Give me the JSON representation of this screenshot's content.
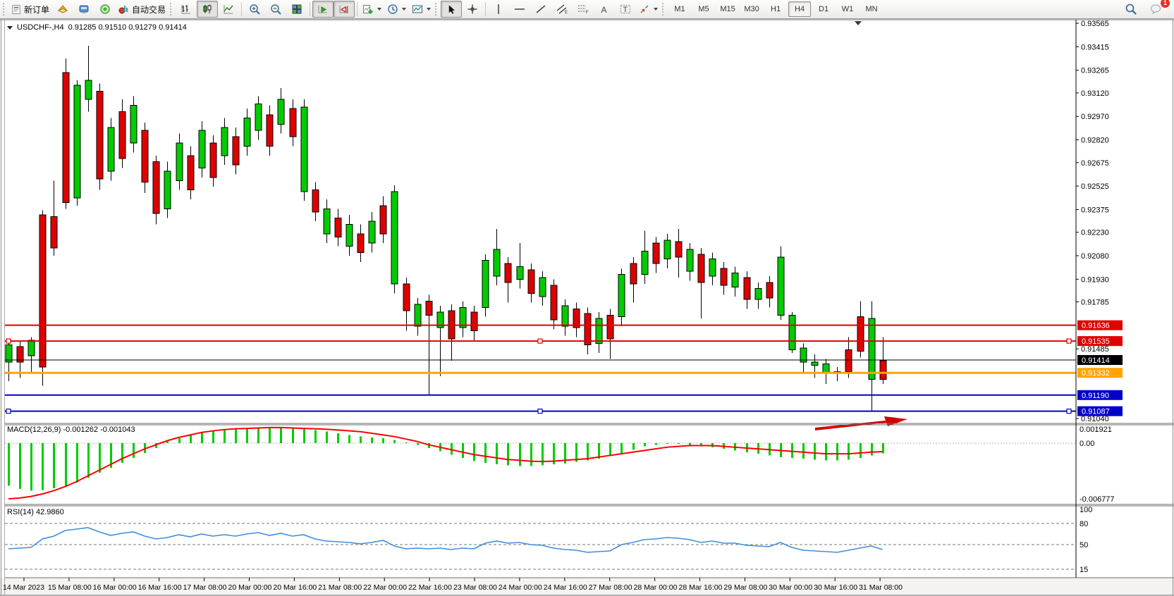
{
  "window": {
    "title_symbol": "USDCHF-,H4",
    "title_ohlc": "0.91285 0.91510 0.91279 0.91414"
  },
  "toolbar": {
    "new_order": "新订单",
    "auto_trading": "自动交易",
    "badge_count": "1",
    "timeframes": [
      "M1",
      "M5",
      "M15",
      "M30",
      "H1",
      "H4",
      "D1",
      "W1",
      "MN"
    ],
    "active_timeframe": "H4"
  },
  "price_axis": {
    "ticks": [
      "0.93565",
      "0.93415",
      "0.93265",
      "0.93120",
      "0.92970",
      "0.92820",
      "0.92675",
      "0.92525",
      "0.92375",
      "0.92230",
      "0.92080",
      "0.91930",
      "0.91785",
      "0.91485",
      "0.91040"
    ]
  },
  "hlines": [
    {
      "price": 0.91636,
      "label": "0.91636",
      "color": "#DF0000",
      "width": 2,
      "selected": false
    },
    {
      "price": 0.91535,
      "label": "0.91535",
      "color": "#DF0000",
      "width": 2,
      "selected": true
    },
    {
      "price": 0.91414,
      "label": "0.91414",
      "color": "#000000",
      "width": 1,
      "selected": false
    },
    {
      "price": 0.91332,
      "label": "0.91332",
      "color": "#FFA500",
      "width": 3,
      "selected": false
    },
    {
      "price": 0.9119,
      "label": "0.91190",
      "color": "#0000C8",
      "width": 2,
      "selected": false
    },
    {
      "price": 0.91087,
      "label": "0.91087",
      "color": "#0000C8",
      "width": 2,
      "selected": true
    }
  ],
  "candles": {
    "green_color": "#00CC00",
    "red_color": "#DF0000",
    "data": [
      [
        "G",
        0.9151,
        0.914,
        0.9154,
        0.9128
      ],
      [
        "R",
        0.915,
        0.914,
        0.9153,
        0.913
      ],
      [
        "G",
        0.9154,
        0.9144,
        0.9156,
        0.9133
      ],
      [
        "R",
        0.9234,
        0.9137,
        0.9237,
        0.9125
      ],
      [
        "R",
        0.9233,
        0.9213,
        0.9256,
        0.9208
      ],
      [
        "R",
        0.9325,
        0.9242,
        0.9334,
        0.9238
      ],
      [
        "G",
        0.9317,
        0.9245,
        0.932,
        0.924
      ],
      [
        "G",
        0.932,
        0.9308,
        0.9342,
        0.93
      ],
      [
        "R",
        0.9313,
        0.9257,
        0.9318,
        0.925
      ],
      [
        "G",
        0.929,
        0.9262,
        0.9296,
        0.9256
      ],
      [
        "R",
        0.93,
        0.927,
        0.9308,
        0.9264
      ],
      [
        "G",
        0.9304,
        0.928,
        0.931,
        0.9274
      ],
      [
        "R",
        0.9288,
        0.9255,
        0.9293,
        0.9248
      ],
      [
        "R",
        0.9268,
        0.9235,
        0.9272,
        0.9228
      ],
      [
        "G",
        0.9262,
        0.9238,
        0.9268,
        0.9232
      ],
      [
        "G",
        0.928,
        0.9256,
        0.9286,
        0.925
      ],
      [
        "R",
        0.9272,
        0.925,
        0.9278,
        0.9244
      ],
      [
        "G",
        0.9288,
        0.9264,
        0.9294,
        0.9258
      ],
      [
        "R",
        0.928,
        0.9258,
        0.9285,
        0.9252
      ],
      [
        "G",
        0.929,
        0.9272,
        0.9296,
        0.9266
      ],
      [
        "R",
        0.9284,
        0.9266,
        0.929,
        0.926
      ],
      [
        "G",
        0.9296,
        0.9278,
        0.9302,
        0.9272
      ],
      [
        "G",
        0.9305,
        0.9288,
        0.931,
        0.9282
      ],
      [
        "R",
        0.9298,
        0.9278,
        0.9304,
        0.9272
      ],
      [
        "G",
        0.9308,
        0.9292,
        0.9315,
        0.9286
      ],
      [
        "R",
        0.9302,
        0.9284,
        0.9308,
        0.9278
      ],
      [
        "G",
        0.9303,
        0.9249,
        0.9308,
        0.9243
      ],
      [
        "R",
        0.925,
        0.9236,
        0.9255,
        0.923
      ],
      [
        "G",
        0.9238,
        0.9222,
        0.9244,
        0.9216
      ],
      [
        "R",
        0.9232,
        0.922,
        0.9238,
        0.9214
      ],
      [
        "G",
        0.9228,
        0.9214,
        0.9234,
        0.9208
      ],
      [
        "R",
        0.9222,
        0.921,
        0.9228,
        0.9204
      ],
      [
        "G",
        0.923,
        0.9216,
        0.9236,
        0.921
      ],
      [
        "R",
        0.924,
        0.9222,
        0.9246,
        0.9216
      ],
      [
        "G",
        0.9249,
        0.919,
        0.9253,
        0.9184
      ],
      [
        "R",
        0.919,
        0.9173,
        0.9194,
        0.916
      ],
      [
        "G",
        0.9177,
        0.9163,
        0.9181,
        0.9157
      ],
      [
        "R",
        0.9179,
        0.917,
        0.9183,
        0.9119
      ],
      [
        "G",
        0.9172,
        0.9162,
        0.9176,
        0.9131
      ],
      [
        "R",
        0.9173,
        0.9155,
        0.9177,
        0.9141
      ],
      [
        "G",
        0.9175,
        0.9162,
        0.9179,
        0.9156
      ],
      [
        "R",
        0.9172,
        0.916,
        0.9176,
        0.9154
      ],
      [
        "G",
        0.9205,
        0.9175,
        0.9209,
        0.9169
      ],
      [
        "G",
        0.9212,
        0.9195,
        0.9225,
        0.9189
      ],
      [
        "R",
        0.9203,
        0.9191,
        0.9207,
        0.9178
      ],
      [
        "G",
        0.9201,
        0.9193,
        0.9216,
        0.9187
      ],
      [
        "R",
        0.9199,
        0.9184,
        0.9203,
        0.9178
      ],
      [
        "G",
        0.9194,
        0.9182,
        0.9198,
        0.9176
      ],
      [
        "R",
        0.9189,
        0.9167,
        0.9193,
        0.9161
      ],
      [
        "G",
        0.9176,
        0.9163,
        0.918,
        0.9157
      ],
      [
        "R",
        0.9174,
        0.9162,
        0.9178,
        0.9156
      ],
      [
        "R",
        0.9171,
        0.9151,
        0.9175,
        0.9145
      ],
      [
        "G",
        0.9168,
        0.9152,
        0.9172,
        0.9146
      ],
      [
        "R",
        0.917,
        0.9155,
        0.9174,
        0.9142
      ],
      [
        "G",
        0.9196,
        0.9169,
        0.92,
        0.9163
      ],
      [
        "R",
        0.9203,
        0.919,
        0.9207,
        0.9178
      ],
      [
        "G",
        0.9211,
        0.9196,
        0.9224,
        0.919
      ],
      [
        "R",
        0.9216,
        0.9203,
        0.922,
        0.9197
      ],
      [
        "G",
        0.9218,
        0.9206,
        0.9222,
        0.92
      ],
      [
        "R",
        0.9217,
        0.9207,
        0.9225,
        0.9194
      ],
      [
        "G",
        0.9212,
        0.9198,
        0.9216,
        0.9192
      ],
      [
        "R",
        0.9209,
        0.9191,
        0.9213,
        0.9168
      ],
      [
        "G",
        0.9206,
        0.9195,
        0.921,
        0.9189
      ],
      [
        "R",
        0.92,
        0.9189,
        0.9204,
        0.9183
      ],
      [
        "G",
        0.9197,
        0.9188,
        0.9201,
        0.9182
      ],
      [
        "R",
        0.9194,
        0.918,
        0.9198,
        0.9174
      ],
      [
        "G",
        0.9187,
        0.918,
        0.9191,
        0.9174
      ],
      [
        "R",
        0.9191,
        0.9181,
        0.9195,
        0.9175
      ],
      [
        "G",
        0.9207,
        0.917,
        0.9214,
        0.9167
      ],
      [
        "G",
        0.917,
        0.9148,
        0.9172,
        0.9146
      ],
      [
        "G",
        0.9149,
        0.914,
        0.9152,
        0.9133
      ],
      [
        "G",
        0.914,
        0.9138,
        0.9145,
        0.913
      ],
      [
        "G",
        0.9139,
        0.9133,
        0.9142,
        0.9126
      ],
      [
        "R",
        0.9134,
        0.9133,
        0.9137,
        0.9128
      ],
      [
        "R",
        0.9148,
        0.9134,
        0.9156,
        0.913
      ],
      [
        "R",
        0.9169,
        0.9147,
        0.9179,
        0.9143
      ],
      [
        "G",
        0.9168,
        0.9129,
        0.9179,
        0.9109
      ],
      [
        "R",
        0.9141,
        0.9129,
        0.9156,
        0.9126
      ]
    ]
  },
  "annotations": {
    "arrow_color": "#D40000"
  },
  "macd": {
    "label": "MACD(12,26,9) -0.001262 -0.001043",
    "axis_labels": [
      "0.001921",
      "0.00",
      "-0.006777"
    ],
    "axis_values": [
      0.001921,
      0,
      -0.006777
    ],
    "hist_color": "#00CC00",
    "signal_color": "#FF0000",
    "histogram": [
      -0.0052,
      -0.0056,
      -0.0058,
      -0.0057,
      -0.0055,
      -0.0052,
      -0.0048,
      -0.0042,
      -0.0036,
      -0.003,
      -0.0024,
      -0.0018,
      -0.0012,
      -0.0006,
      0.0002,
      0.0006,
      0.001,
      0.0013,
      0.0015,
      0.0017,
      0.0018,
      0.00185,
      0.0019,
      0.0019,
      0.00185,
      0.0018,
      0.0017,
      0.0016,
      0.0014,
      0.0012,
      0.001,
      0.0008,
      0.0007,
      0.0006,
      0.0004,
      0.0001,
      -0.0002,
      -0.0006,
      -0.001,
      -0.0014,
      -0.0018,
      -0.0022,
      -0.0024,
      -0.0026,
      -0.0027,
      -0.0028,
      -0.0028,
      -0.0027,
      -0.0026,
      -0.0025,
      -0.0023,
      -0.0021,
      -0.0019,
      -0.0016,
      -0.0012,
      -0.0008,
      -0.0004,
      -0.0002,
      -0.0001,
      -0.0001,
      -0.0002,
      -0.0003,
      -0.0005,
      -0.0007,
      -0.0009,
      -0.0011,
      -0.0013,
      -0.0015,
      -0.0017,
      -0.0018,
      -0.0019,
      -0.002,
      -0.0021,
      -0.0021,
      -0.002,
      -0.0018,
      -0.0015,
      -0.00126
    ],
    "signal": [
      -0.0068,
      -0.0067,
      -0.0065,
      -0.0062,
      -0.0058,
      -0.0053,
      -0.0047,
      -0.004,
      -0.0033,
      -0.0026,
      -0.0019,
      -0.0013,
      -0.0007,
      -0.0002,
      0.0003,
      0.0007,
      0.001,
      0.0013,
      0.0015,
      0.00165,
      0.00175,
      0.0018,
      0.00185,
      0.0019,
      0.0019,
      0.00185,
      0.0018,
      0.00175,
      0.0017,
      0.0016,
      0.0015,
      0.0014,
      0.0012,
      0.001,
      0.0008,
      0.0005,
      0.0002,
      -0.0002,
      -0.0005,
      -0.0008,
      -0.0011,
      -0.0014,
      -0.0016,
      -0.0018,
      -0.002,
      -0.0021,
      -0.0022,
      -0.00225,
      -0.0022,
      -0.0021,
      -0.002,
      -0.0019,
      -0.0017,
      -0.0015,
      -0.0013,
      -0.0011,
      -0.0009,
      -0.0007,
      -0.0005,
      -0.0004,
      -0.0003,
      -0.0003,
      -0.0003,
      -0.0004,
      -0.0005,
      -0.0006,
      -0.0007,
      -0.0008,
      -0.0009,
      -0.001,
      -0.0011,
      -0.0012,
      -0.0013,
      -0.0013,
      -0.0013,
      -0.0012,
      -0.0011,
      -0.00104
    ]
  },
  "rsi": {
    "label": "RSI(14) 42.9860",
    "axis_labels": [
      "100",
      "80",
      "50",
      "15"
    ],
    "levels": [
      80,
      50,
      15
    ],
    "color": "#3E8EDE",
    "values": [
      44,
      45,
      46,
      58,
      62,
      70,
      72,
      74,
      68,
      63,
      66,
      68,
      62,
      58,
      60,
      64,
      61,
      65,
      62,
      64,
      62,
      65,
      67,
      63,
      66,
      62,
      64,
      58,
      55,
      54,
      53,
      51,
      53,
      56,
      48,
      44,
      45,
      44,
      45,
      43,
      45,
      44,
      52,
      55,
      52,
      53,
      50,
      49,
      45,
      43,
      42,
      39,
      40,
      41,
      50,
      53,
      57,
      58,
      60,
      59,
      57,
      53,
      55,
      52,
      52,
      49,
      48,
      47,
      53,
      46,
      42,
      41,
      40,
      39,
      42,
      45,
      48,
      43
    ]
  },
  "time_axis": {
    "labels": [
      "14 Mar 2023",
      "15 Mar 08:00",
      "16 Mar 00:00",
      "16 Mar 16:00",
      "17 Mar 08:00",
      "20 Mar 00:00",
      "20 Mar 16:00",
      "21 Mar 08:00",
      "22 Mar 00:00",
      "22 Mar 16:00",
      "23 Mar 08:00",
      "24 Mar 00:00",
      "24 Mar 16:00",
      "27 Mar 08:00",
      "28 Mar 00:00",
      "28 Mar 16:00",
      "29 Mar 08:00",
      "30 Mar 00:00",
      "30 Mar 16:00",
      "31 Mar 08:00"
    ]
  }
}
